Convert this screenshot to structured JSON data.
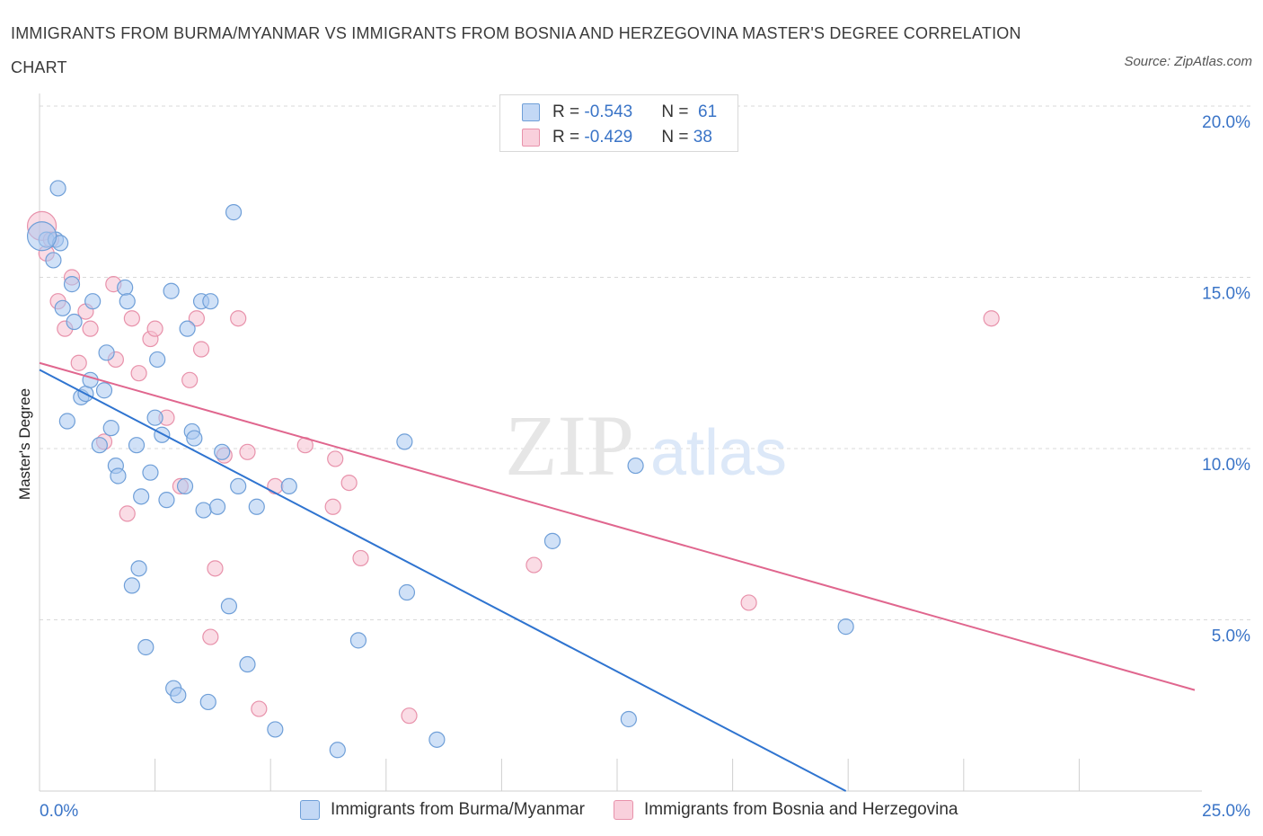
{
  "header": {
    "title": "IMMIGRANTS FROM BURMA/MYANMAR VS IMMIGRANTS FROM BOSNIA AND HERZEGOVINA MASTER'S DEGREE CORRELATION CHART",
    "source": "Source: ZipAtlas.com"
  },
  "legend_top": {
    "rows": [
      {
        "r_label": "R = ",
        "r_value": "-0.543",
        "n_label": "N = ",
        "n_value": " 61"
      },
      {
        "r_label": "R = ",
        "r_value": "-0.429",
        "n_label": "N = ",
        "n_value": "38"
      }
    ]
  },
  "watermark": {
    "zip": "ZIP",
    "atlas": "atlas"
  },
  "colors": {
    "blue_fill": "#aac8f0",
    "blue_stroke": "#6f9fd8",
    "blue_line": "#2f74d0",
    "pink_fill": "#f6bfcf",
    "pink_stroke": "#e892ab",
    "pink_line": "#e0668e",
    "axis_text": "#3a74c7",
    "grid": "#d9d9d9"
  },
  "chart_data": {
    "type": "scatter",
    "title": "IMMIGRANTS FROM BURMA/MYANMAR VS IMMIGRANTS FROM BOSNIA AND HERZEGOVINA MASTER'S DEGREE CORRELATION CHART",
    "xlabel": "",
    "ylabel": "Master's Degree",
    "xlim": [
      0,
      25
    ],
    "ylim": [
      0,
      20
    ],
    "x_tick_labels": [
      "0.0%",
      "25.0%"
    ],
    "y_ticks": [
      5,
      10,
      15,
      20
    ],
    "y_tick_labels": [
      "5.0%",
      "10.0%",
      "15.0%",
      "20.0%"
    ],
    "grid": true,
    "series": [
      {
        "name": "Immigrants from Burma/Myanmar",
        "color": "blue",
        "R": -0.543,
        "N": 61,
        "trend": [
          [
            0,
            12.3
          ],
          [
            17.45,
            0
          ]
        ],
        "points": [
          [
            0.15,
            16.1
          ],
          [
            0.3,
            15.5
          ],
          [
            0.35,
            16.1
          ],
          [
            0.4,
            17.6
          ],
          [
            0.45,
            16.0
          ],
          [
            0.5,
            14.1
          ],
          [
            0.6,
            10.8
          ],
          [
            0.7,
            14.8
          ],
          [
            0.75,
            13.7
          ],
          [
            0.9,
            11.5
          ],
          [
            1.0,
            11.6
          ],
          [
            1.1,
            12.0
          ],
          [
            1.15,
            14.3
          ],
          [
            1.3,
            10.1
          ],
          [
            1.4,
            11.7
          ],
          [
            1.45,
            12.8
          ],
          [
            1.55,
            10.6
          ],
          [
            1.65,
            9.5
          ],
          [
            1.7,
            9.2
          ],
          [
            1.85,
            14.7
          ],
          [
            1.9,
            14.3
          ],
          [
            2.0,
            6.0
          ],
          [
            2.1,
            10.1
          ],
          [
            2.15,
            6.5
          ],
          [
            2.2,
            8.6
          ],
          [
            2.3,
            4.2
          ],
          [
            2.4,
            9.3
          ],
          [
            2.5,
            10.9
          ],
          [
            2.55,
            12.6
          ],
          [
            2.65,
            10.4
          ],
          [
            2.75,
            8.5
          ],
          [
            2.85,
            14.6
          ],
          [
            2.9,
            3.0
          ],
          [
            3.0,
            2.8
          ],
          [
            3.15,
            8.9
          ],
          [
            3.2,
            13.5
          ],
          [
            3.3,
            10.5
          ],
          [
            3.35,
            10.3
          ],
          [
            3.5,
            14.3
          ],
          [
            3.55,
            8.2
          ],
          [
            3.65,
            2.6
          ],
          [
            3.7,
            14.3
          ],
          [
            3.85,
            8.3
          ],
          [
            3.95,
            9.9
          ],
          [
            4.1,
            5.4
          ],
          [
            4.2,
            16.9
          ],
          [
            4.3,
            8.9
          ],
          [
            4.5,
            3.7
          ],
          [
            4.7,
            8.3
          ],
          [
            5.1,
            1.8
          ],
          [
            5.4,
            8.9
          ],
          [
            6.45,
            1.2
          ],
          [
            6.9,
            4.4
          ],
          [
            7.9,
            10.2
          ],
          [
            7.95,
            5.8
          ],
          [
            8.6,
            1.5
          ],
          [
            11.1,
            7.3
          ],
          [
            12.75,
            2.1
          ],
          [
            12.9,
            9.5
          ],
          [
            17.45,
            4.8
          ],
          [
            0.05,
            16.2
          ]
        ]
      },
      {
        "name": "Immigrants from Bosnia and Herzegovina",
        "color": "pink",
        "R": -0.429,
        "N": 38,
        "trend": [
          [
            0,
            12.5
          ],
          [
            25,
            2.95
          ]
        ],
        "points": [
          [
            0.05,
            16.5
          ],
          [
            0.15,
            15.7
          ],
          [
            0.4,
            14.3
          ],
          [
            0.55,
            13.5
          ],
          [
            0.7,
            15.0
          ],
          [
            0.85,
            12.5
          ],
          [
            1.0,
            14.0
          ],
          [
            1.1,
            13.5
          ],
          [
            1.4,
            10.2
          ],
          [
            1.6,
            14.8
          ],
          [
            1.65,
            12.6
          ],
          [
            1.9,
            8.1
          ],
          [
            2.0,
            13.8
          ],
          [
            2.15,
            12.2
          ],
          [
            2.4,
            13.2
          ],
          [
            2.5,
            13.5
          ],
          [
            2.75,
            10.9
          ],
          [
            3.05,
            8.9
          ],
          [
            3.25,
            12.0
          ],
          [
            3.4,
            13.8
          ],
          [
            3.5,
            12.9
          ],
          [
            3.7,
            4.5
          ],
          [
            3.8,
            6.5
          ],
          [
            4.0,
            9.8
          ],
          [
            4.3,
            13.8
          ],
          [
            4.5,
            9.9
          ],
          [
            4.75,
            2.4
          ],
          [
            5.1,
            8.9
          ],
          [
            5.75,
            10.1
          ],
          [
            6.35,
            8.3
          ],
          [
            6.4,
            9.7
          ],
          [
            6.7,
            9.0
          ],
          [
            6.95,
            6.8
          ],
          [
            8.0,
            2.2
          ],
          [
            10.7,
            6.6
          ],
          [
            15.35,
            5.5
          ],
          [
            20.6,
            13.8
          ],
          [
            0.25,
            16.1
          ]
        ]
      }
    ]
  }
}
